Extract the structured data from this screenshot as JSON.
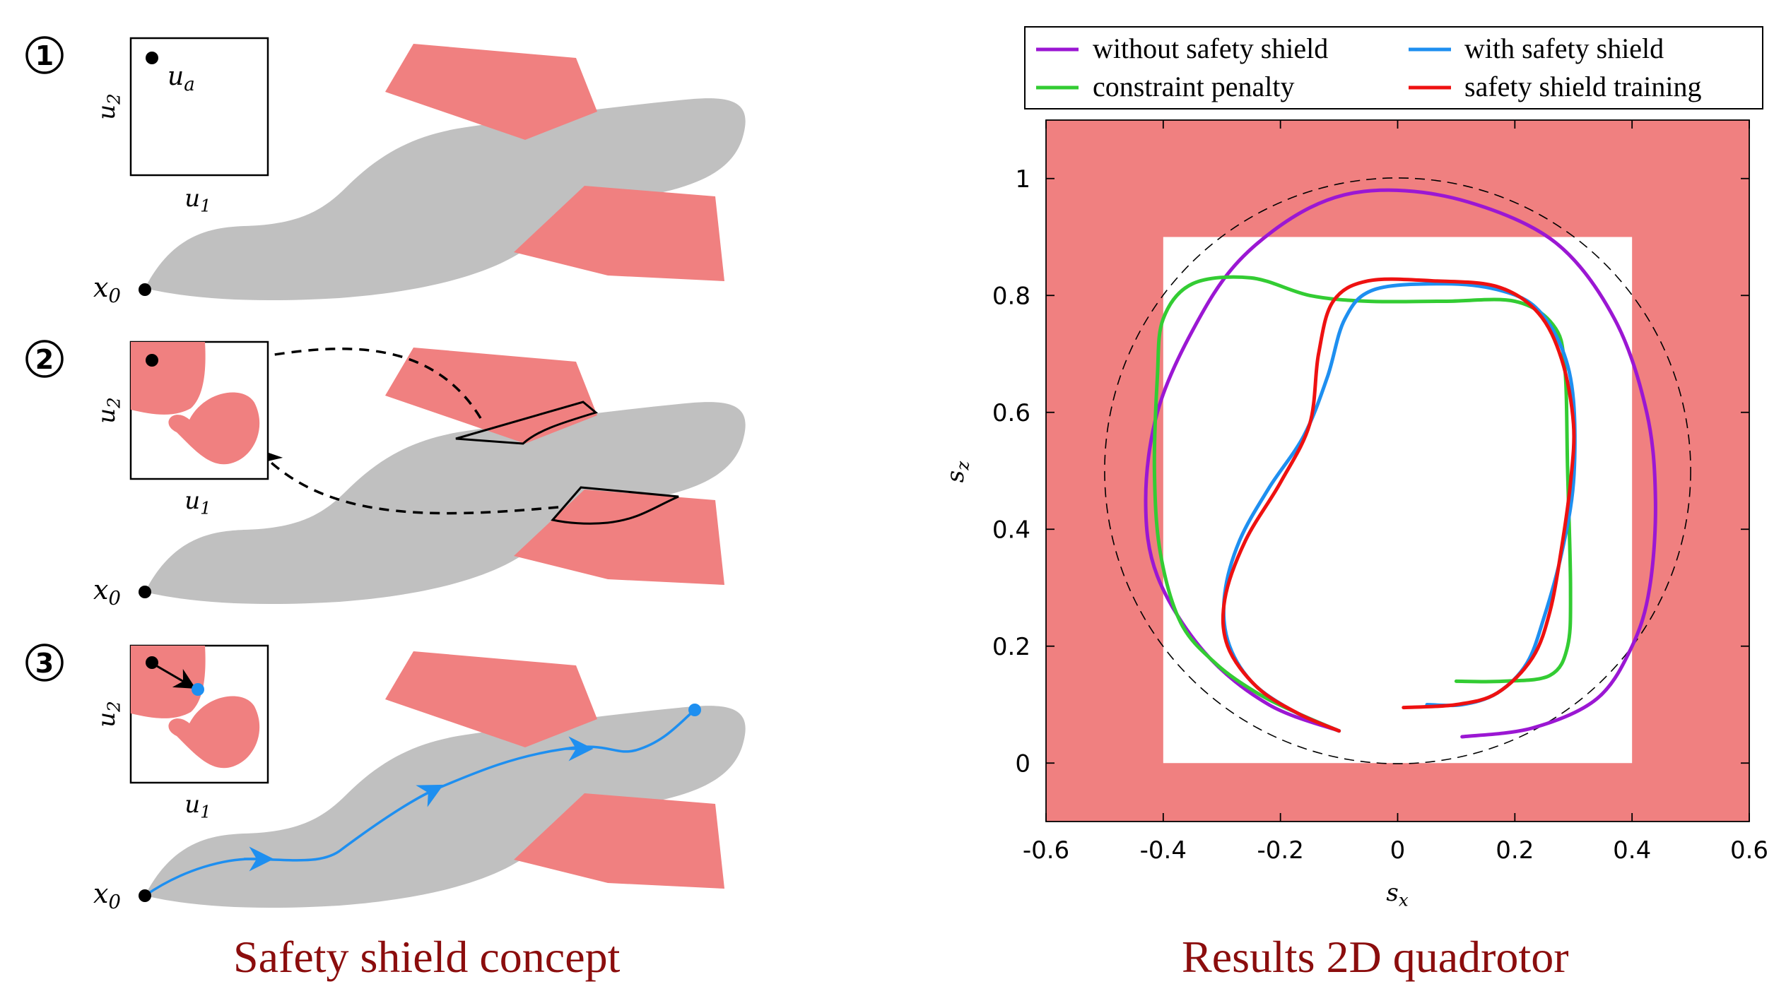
{
  "left_panel": {
    "caption": "Safety shield concept",
    "steps": [
      {
        "number": "1",
        "start_label": "x0",
        "input_label": "u_a"
      },
      {
        "number": "2",
        "start_label": "x0"
      },
      {
        "number": "3",
        "start_label": "x0"
      }
    ],
    "inset_axis": {
      "x": "u1",
      "y": "u2"
    }
  },
  "right_panel": {
    "caption": "Results 2D quadrotor"
  },
  "colors": {
    "obstacle": "#f08080",
    "tube": "#c0c0c0",
    "shield_path": "#1e8ff0",
    "no_shield": "#9b17d3",
    "penalty": "#33cc33",
    "shield_training": "#ee1111"
  },
  "chart_data": {
    "type": "line",
    "xlabel": "s_x",
    "ylabel": "s_z",
    "xlim": [
      -0.6,
      0.6
    ],
    "ylim": [
      -0.1,
      1.1
    ],
    "xticks": [
      "-0.6",
      "-0.4",
      "-0.2",
      "0",
      "0.2",
      "0.4",
      "0.6"
    ],
    "yticks": [
      "0",
      "0.2",
      "0.4",
      "0.6",
      "0.8",
      "1"
    ],
    "safe_region": {
      "x": [
        -0.4,
        0.4
      ],
      "z": [
        0,
        0.9
      ]
    },
    "reference_circle": {
      "center": [
        0,
        0.5
      ],
      "radius": 0.5
    },
    "legend_position": "top",
    "series": [
      {
        "name": "without safety shield",
        "color": "#9b17d3",
        "points": [
          [
            0.11,
            0.045
          ],
          [
            0.23,
            0.06
          ],
          [
            0.34,
            0.11
          ],
          [
            0.4,
            0.2
          ],
          [
            0.43,
            0.3
          ],
          [
            0.44,
            0.45
          ],
          [
            0.425,
            0.6
          ],
          [
            0.37,
            0.76
          ],
          [
            0.27,
            0.89
          ],
          [
            0.12,
            0.96
          ],
          [
            -0.03,
            0.98
          ],
          [
            -0.15,
            0.95
          ],
          [
            -0.27,
            0.86
          ],
          [
            -0.35,
            0.74
          ],
          [
            -0.41,
            0.6
          ],
          [
            -0.43,
            0.45
          ],
          [
            -0.41,
            0.32
          ],
          [
            -0.33,
            0.19
          ],
          [
            -0.22,
            0.1
          ],
          [
            -0.1,
            0.055
          ]
        ]
      },
      {
        "name": "constraint penalty",
        "color": "#33cc33",
        "points": [
          [
            0.1,
            0.14
          ],
          [
            0.18,
            0.14
          ],
          [
            0.26,
            0.15
          ],
          [
            0.29,
            0.2
          ],
          [
            0.295,
            0.3
          ],
          [
            0.29,
            0.5
          ],
          [
            0.285,
            0.68
          ],
          [
            0.265,
            0.75
          ],
          [
            0.2,
            0.79
          ],
          [
            0.08,
            0.79
          ],
          [
            -0.05,
            0.79
          ],
          [
            -0.15,
            0.8
          ],
          [
            -0.25,
            0.83
          ],
          [
            -0.35,
            0.82
          ],
          [
            -0.4,
            0.76
          ],
          [
            -0.41,
            0.66
          ],
          [
            -0.415,
            0.5
          ],
          [
            -0.405,
            0.36
          ],
          [
            -0.37,
            0.24
          ],
          [
            -0.31,
            0.17
          ],
          [
            -0.24,
            0.12
          ],
          [
            -0.17,
            0.085
          ],
          [
            -0.1,
            0.055
          ]
        ]
      },
      {
        "name": "with safety shield",
        "color": "#1e8ff0",
        "points": [
          [
            0.05,
            0.1
          ],
          [
            0.11,
            0.1
          ],
          [
            0.17,
            0.12
          ],
          [
            0.22,
            0.17
          ],
          [
            0.25,
            0.25
          ],
          [
            0.28,
            0.36
          ],
          [
            0.3,
            0.48
          ],
          [
            0.3,
            0.62
          ],
          [
            0.28,
            0.71
          ],
          [
            0.235,
            0.78
          ],
          [
            0.17,
            0.81
          ],
          [
            0.08,
            0.82
          ],
          [
            -0.04,
            0.81
          ],
          [
            -0.09,
            0.76
          ],
          [
            -0.12,
            0.66
          ],
          [
            -0.16,
            0.56
          ],
          [
            -0.22,
            0.47
          ],
          [
            -0.27,
            0.38
          ],
          [
            -0.295,
            0.29
          ],
          [
            -0.29,
            0.21
          ],
          [
            -0.25,
            0.14
          ],
          [
            -0.18,
            0.09
          ],
          [
            -0.1,
            0.055
          ]
        ]
      },
      {
        "name": "safety shield training",
        "color": "#ee1111",
        "points": [
          [
            0.01,
            0.095
          ],
          [
            0.1,
            0.1
          ],
          [
            0.17,
            0.12
          ],
          [
            0.23,
            0.18
          ],
          [
            0.26,
            0.26
          ],
          [
            0.28,
            0.37
          ],
          [
            0.295,
            0.48
          ],
          [
            0.3,
            0.58
          ],
          [
            0.28,
            0.69
          ],
          [
            0.24,
            0.77
          ],
          [
            0.17,
            0.815
          ],
          [
            0.06,
            0.825
          ],
          [
            -0.05,
            0.825
          ],
          [
            -0.11,
            0.79
          ],
          [
            -0.135,
            0.7
          ],
          [
            -0.15,
            0.58
          ],
          [
            -0.2,
            0.48
          ],
          [
            -0.26,
            0.38
          ],
          [
            -0.295,
            0.28
          ],
          [
            -0.29,
            0.2
          ],
          [
            -0.24,
            0.13
          ],
          [
            -0.17,
            0.085
          ],
          [
            -0.1,
            0.055
          ]
        ]
      }
    ]
  }
}
